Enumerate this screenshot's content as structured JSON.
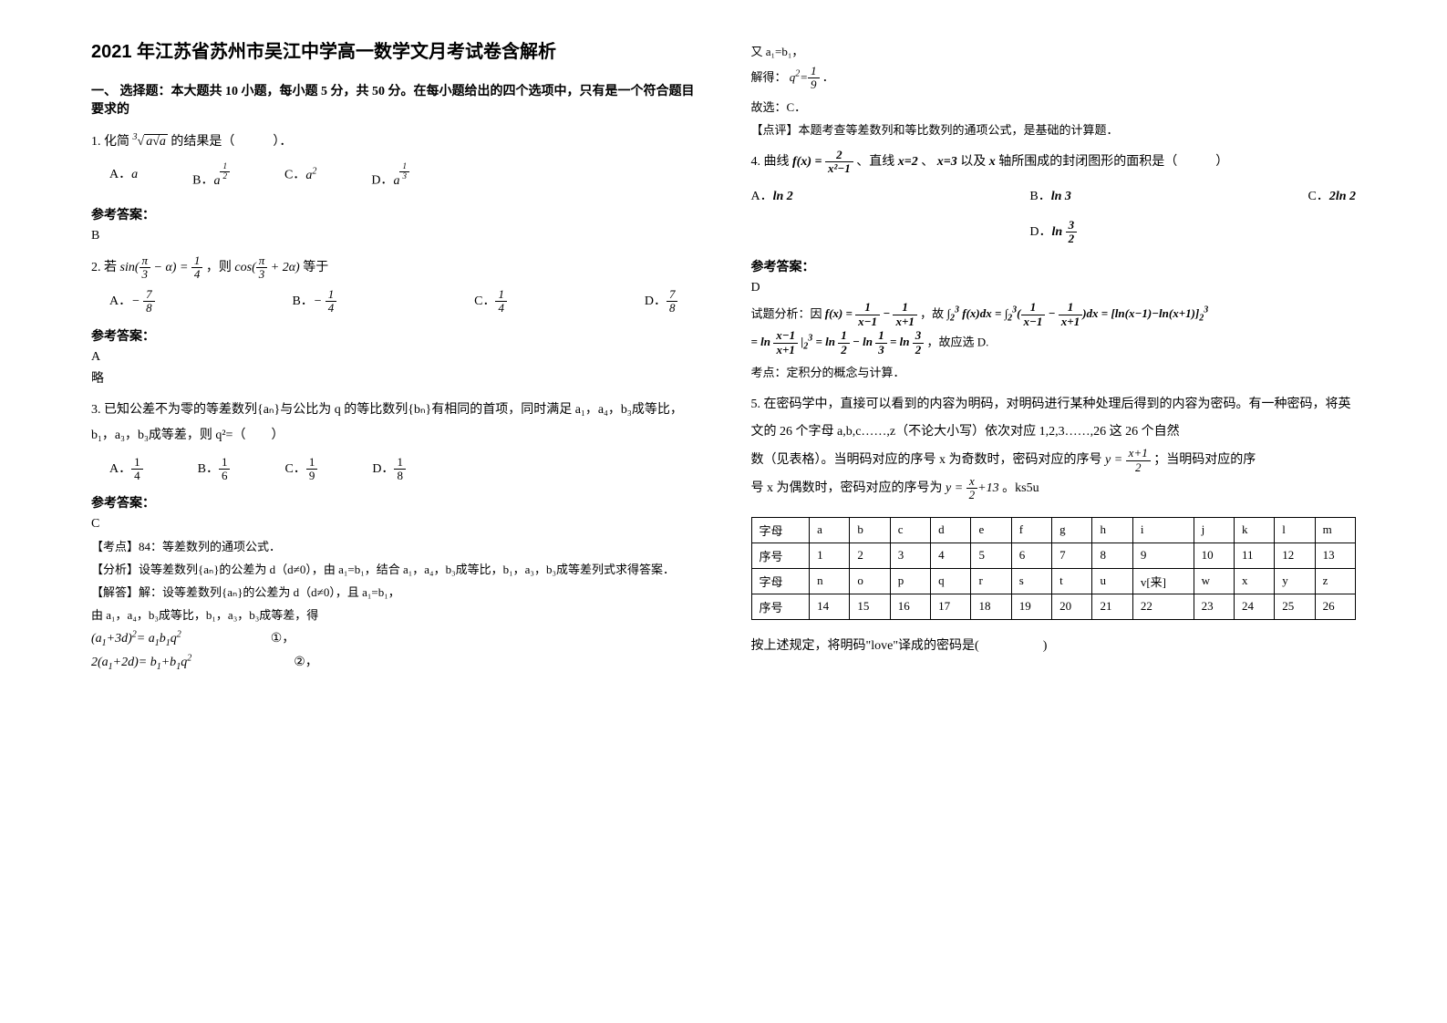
{
  "title": "2021 年江苏省苏州市吴江中学高一数学文月考试卷含解析",
  "section1_head": "一、 选择题：本大题共 10 小题，每小题 5 分，共 50 分。在每小题给出的四个选项中，只有是一个符合题目要求的",
  "p1": {
    "stem_prefix": "1. 化简",
    "stem_suffix": " 的结果是（　　　）．",
    "optA": "A．",
    "optB": "B．",
    "optC": "C．",
    "optD": "D．",
    "ans_head": "参考答案：",
    "ans": "B"
  },
  "p2": {
    "stem_prefix": "2. 若",
    "stem_mid": "，则",
    "stem_suffix": "等于",
    "optA": "A．",
    "optB": "B．",
    "optC": "C．",
    "optD": "D．",
    "ans_head": "参考答案：",
    "ans": "A",
    "ans2": "略"
  },
  "p3": {
    "stem": "3. 已知公差不为零的等差数列{aₙ}与公比为 q 的等比数列{bₙ}有相同的首项，同时满足 a₁，a₄，b₃成等比，b₁，a₃，b₃成等差，则 q²=（　　）",
    "optA": "A．",
    "optB": "B．",
    "optC": "C．",
    "optD": "D．",
    "ans_head": "参考答案：",
    "ans": "C",
    "kaodian": "【考点】84：等差数列的通项公式．",
    "fenxi": "【分析】设等差数列{aₙ}的公差为 d（d≠0），由 a₁=b₁，结合 a₁，a₄，b₃成等比，b₁，a₃，b₃成等差列式求得答案．",
    "jieda1": "【解答】解：设等差数列{aₙ}的公差为 d（d≠0），且 a₁=b₁，",
    "jieda2": "由 a₁，a₄，b₃成等比，b₁，a₃，b₃成等差，得",
    "eq1_label": "①，",
    "eq2_label": "②，",
    "col2_line1": "又 a₁=b₁，",
    "col2_line2_pre": "解得：",
    "col2_line2_post": "．",
    "col2_line3": "故选：C．",
    "dianping": "【点评】本题考查等差数列和等比数列的通项公式，是基础的计算题．"
  },
  "p4": {
    "stem_prefix": "4. 曲线",
    "stem_mid1": "、直线",
    "stem_mid2": "、",
    "stem_mid3": "以及",
    "stem_suffix": "轴所围成的封闭图形的面积是（　　　）",
    "optA": "A．",
    "optB": "B．",
    "optC": "C．",
    "optD": "D．",
    "ans_head": "参考答案：",
    "ans": "D",
    "fenxi_pre": "试题分析：因",
    "fenxi_mid": "，故",
    "fenxi_post": "，故应选 D.",
    "kaodian": "考点：定积分的概念与计算．"
  },
  "p5": {
    "stem1": "5. 在密码学中，直接可以看到的内容为明码，对明码进行某种处理后得到的内容为密码。有一种密码，将英文的 26 个字母 a,b,c……,z（不论大小写）依次对应 1,2,3……,26 这 26 个自然",
    "stem2_pre": "数（见表格）。当明码对应的序号 x 为奇数时，密码对应的序号",
    "stem2_post": "；当明码对应的序",
    "stem3_pre": "号 x 为偶数时，密码对应的序号为",
    "stem3_post": "。ks5u",
    "table": {
      "rows": [
        [
          "字母",
          "a",
          "b",
          "c",
          "d",
          "e",
          "f",
          "g",
          "h",
          "i",
          "j",
          "k",
          "l",
          "m"
        ],
        [
          "序号",
          "1",
          "2",
          "3",
          "4",
          "5",
          "6",
          "7",
          "8",
          "9",
          "10",
          "11",
          "12",
          "13"
        ],
        [
          "字母",
          "n",
          "o",
          "p",
          "q",
          "r",
          "s",
          "t",
          "u",
          "v[来]",
          "w",
          "x",
          "y",
          "z"
        ],
        [
          "序号",
          "14",
          "15",
          "16",
          "17",
          "18",
          "19",
          "20",
          "21",
          "22",
          "23",
          "24",
          "25",
          "26"
        ]
      ]
    },
    "question": "按上述规定，将明码\"love\"译成的密码是(　　　　　)"
  }
}
